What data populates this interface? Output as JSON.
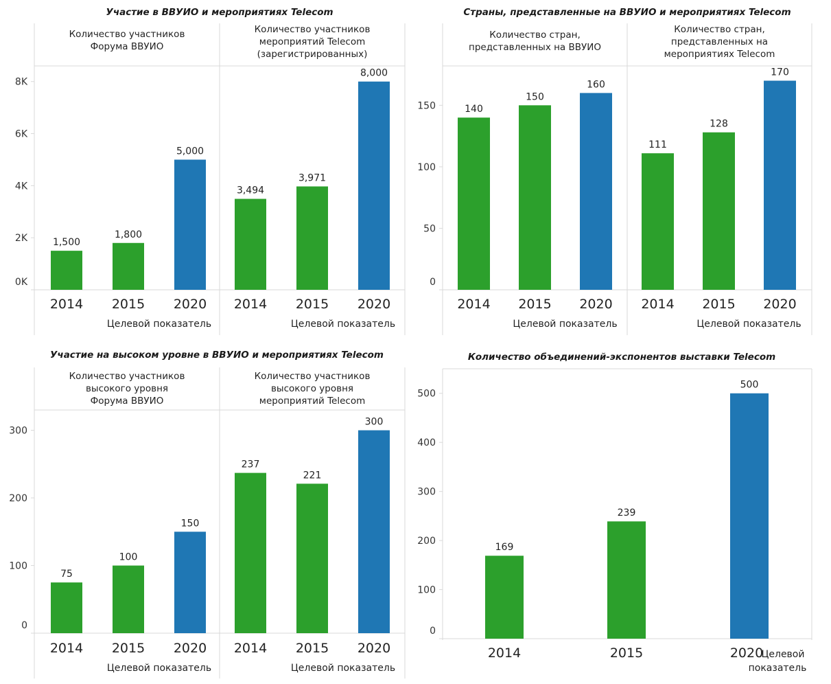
{
  "colors": {
    "actual": "#2ca02c",
    "target": "#1f77b4"
  },
  "chart_data": [
    {
      "type": "bar",
      "title": "Участие в ВВУИО и мероприятиях Telecom",
      "ylim": [
        0,
        8600
      ],
      "yticks": [
        0,
        2000,
        4000,
        6000,
        8000
      ],
      "ytick_labels": [
        "0K",
        "2K",
        "4K",
        "6K",
        "8K"
      ],
      "target_label": "Целевой показатель",
      "panels": [
        {
          "header": [
            "Количество участников",
            "Форума ВВУИО"
          ],
          "categories": [
            "2014",
            "2015",
            "2020"
          ],
          "values": [
            1500,
            1800,
            5000
          ],
          "value_labels": [
            "1,500",
            "1,800",
            "5,000"
          ],
          "target": [
            false,
            false,
            true
          ]
        },
        {
          "header": [
            "Количество участников",
            "мероприятий Telecom",
            "(зарегистрированных)"
          ],
          "categories": [
            "2014",
            "2015",
            "2020"
          ],
          "values": [
            3494,
            3971,
            8000
          ],
          "value_labels": [
            "3,494",
            "3,971",
            "8,000"
          ],
          "target": [
            false,
            false,
            true
          ]
        }
      ]
    },
    {
      "type": "bar",
      "title": "Страны, представленные на ВВУИО и мероприятиях Telecom",
      "ylim": [
        0,
        182
      ],
      "yticks": [
        0,
        50,
        100,
        150
      ],
      "ytick_labels": [
        "0",
        "50",
        "100",
        "150"
      ],
      "target_label": "Целевой показатель",
      "panels": [
        {
          "header": [
            "Количество стран,",
            "представленных на ВВУИО"
          ],
          "categories": [
            "2014",
            "2015",
            "2020"
          ],
          "values": [
            140,
            150,
            160
          ],
          "value_labels": [
            "140",
            "150",
            "160"
          ],
          "target": [
            false,
            false,
            true
          ]
        },
        {
          "header": [
            "Количество стран,",
            "представленных на",
            "мероприятиях Telecom"
          ],
          "categories": [
            "2014",
            "2015",
            "2020"
          ],
          "values": [
            111,
            128,
            170
          ],
          "value_labels": [
            "111",
            "128",
            "170"
          ],
          "target": [
            false,
            false,
            true
          ]
        }
      ]
    },
    {
      "type": "bar",
      "title": "Участие на высоком уровне в ВВУИО и мероприятиях Telecom",
      "ylim": [
        0,
        330
      ],
      "yticks": [
        0,
        100,
        200,
        300
      ],
      "ytick_labels": [
        "0",
        "100",
        "200",
        "300"
      ],
      "target_label": "Целевой показатель",
      "panels": [
        {
          "header": [
            "Количество участников",
            "высокого уровня",
            "Форума ВВУИО"
          ],
          "categories": [
            "2014",
            "2015",
            "2020"
          ],
          "values": [
            75,
            100,
            150
          ],
          "value_labels": [
            "75",
            "100",
            "150"
          ],
          "target": [
            false,
            false,
            true
          ]
        },
        {
          "header": [
            "Количество участников",
            "высокого уровня",
            "мероприятий Telecom"
          ],
          "categories": [
            "2014",
            "2015",
            "2020"
          ],
          "values": [
            237,
            221,
            300
          ],
          "value_labels": [
            "237",
            "221",
            "300"
          ],
          "target": [
            false,
            false,
            true
          ]
        }
      ]
    },
    {
      "type": "bar",
      "title": "Количество объединений-экспонентов выставки Telecom",
      "ylim": [
        0,
        550
      ],
      "yticks": [
        0,
        100,
        200,
        300,
        400,
        500
      ],
      "ytick_labels": [
        "0",
        "100",
        "200",
        "300",
        "400",
        "500"
      ],
      "target_label": "Целевой показатель",
      "panels": [
        {
          "header": [],
          "categories": [
            "2014",
            "2015",
            "2020"
          ],
          "values": [
            169,
            239,
            500
          ],
          "value_labels": [
            "169",
            "239",
            "500"
          ],
          "target": [
            false,
            false,
            true
          ]
        }
      ]
    }
  ]
}
